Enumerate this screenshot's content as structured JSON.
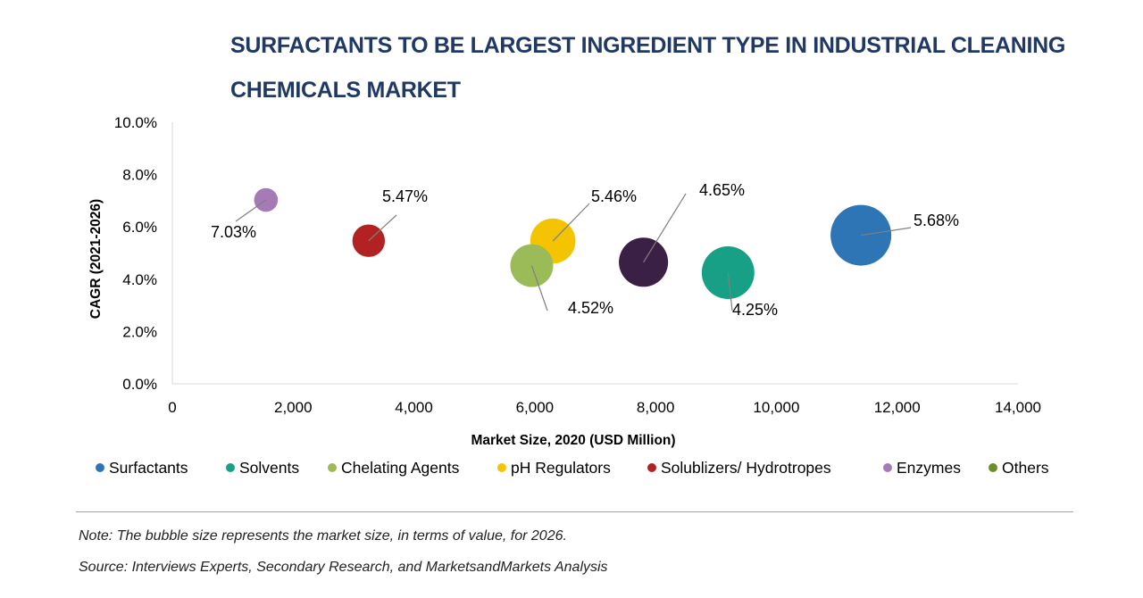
{
  "title": {
    "line1": "SURFACTANTS TO BE LARGEST INGREDIENT TYPE IN INDUSTRIAL CLEANING",
    "line2": "CHEMICALS MARKET"
  },
  "chart_data": {
    "type": "scatter",
    "variant": "bubble",
    "title": "SURFACTANTS TO BE LARGEST INGREDIENT TYPE IN INDUSTRIAL CLEANING CHEMICALS MARKET",
    "xlabel": "Market Size, 2020 (USD Million)",
    "ylabel": "CAGR (2021-2026)",
    "xlim": [
      0,
      14000
    ],
    "ylim": [
      0,
      10
    ],
    "x_ticks": [
      "0",
      "2,000",
      "4,000",
      "6,000",
      "8,000",
      "10,000",
      "12,000",
      "14,000"
    ],
    "y_ticks": [
      "0.0%",
      "2.0%",
      "4.0%",
      "6.0%",
      "8.0%",
      "10.0%"
    ],
    "legend_position": "bottom",
    "series": [
      {
        "name": "Surfactants",
        "color": "#2e75b6",
        "x": 11400,
        "y": 5.68,
        "size_2026": 15700,
        "label": "5.68%"
      },
      {
        "name": "Solvents",
        "color": "#17a085",
        "x": 9200,
        "y": 4.25,
        "size_2026": 11800,
        "label": "4.25%"
      },
      {
        "name": "Chelating Agents",
        "color": "#9bbb59",
        "x": 5950,
        "y": 4.52,
        "size_2026": 7800,
        "label": "4.52%"
      },
      {
        "name": "pH Regulators",
        "color": "#f5c400",
        "x": 6300,
        "y": 5.46,
        "size_2026": 8700,
        "label": "5.46%"
      },
      {
        "name": "Solublizers/ Hydrotropes",
        "color": "#b22222",
        "x": 3250,
        "y": 5.47,
        "size_2026": 4500,
        "label": "5.47%"
      },
      {
        "name": "Enzymes",
        "color": "#a67bb5",
        "x": 1550,
        "y": 7.03,
        "size_2026": 2400,
        "label": "7.03%"
      },
      {
        "name": "Others",
        "color": "#6a8f2a",
        "x": 7800,
        "y": 4.65,
        "size_2026": 10300,
        "label": "4.65%",
        "marker_color": "#3b2046"
      }
    ]
  },
  "notes": {
    "note": "Note: The bubble size represents the market size, in terms of value, for 2026.",
    "source": "Source: Interviews Experts, Secondary Research, and MarketsandMarkets Analysis"
  }
}
